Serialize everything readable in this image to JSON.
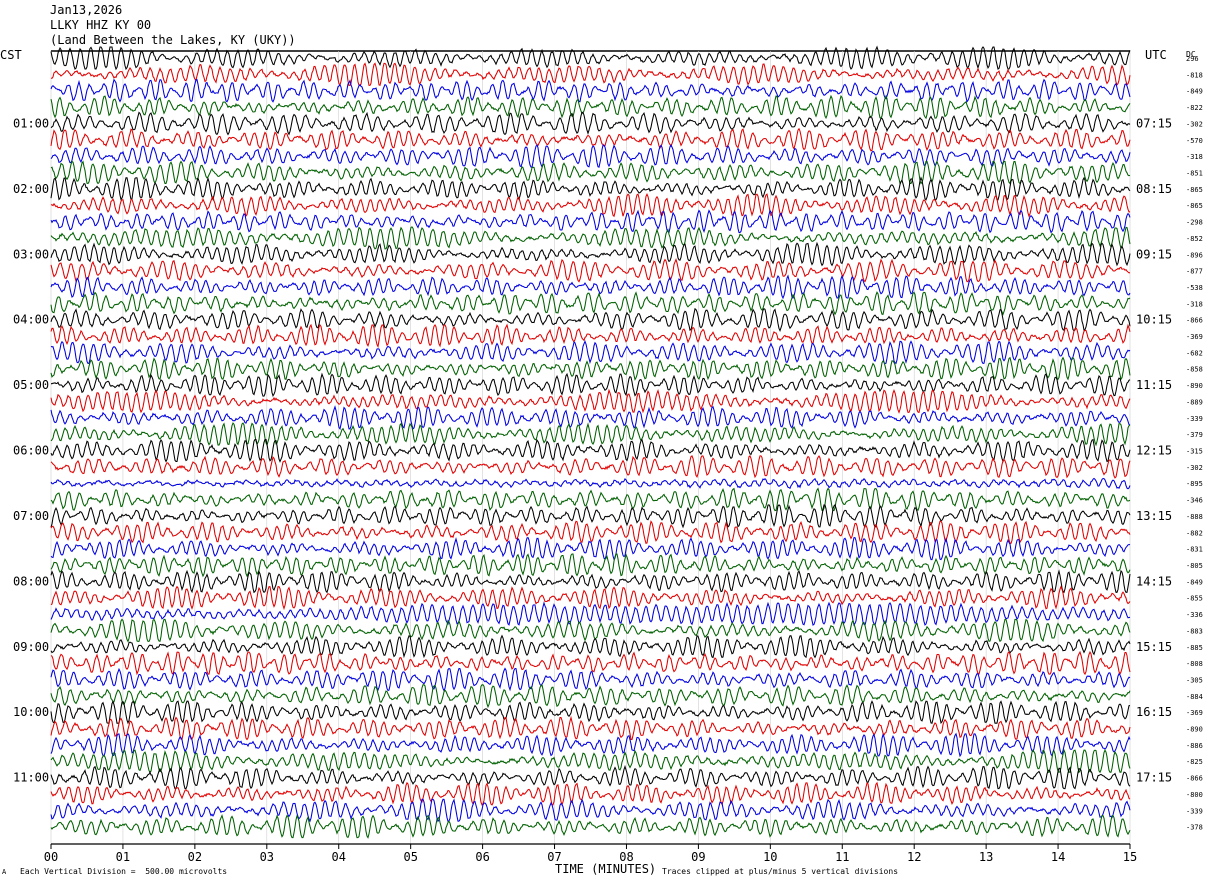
{
  "header": {
    "date": "Jan13,2026",
    "station": "LLKY HHZ KY 00",
    "location": "(Land Between the Lakes, KY (UKY))"
  },
  "left_tz": "CST",
  "right_tz": "UTC",
  "dc_label": "DC",
  "footer": {
    "scale": "Each Vertical Division =  500.00 microvolts",
    "clip": "Traces clipped at plus/minus 5 vertical divisions",
    "mark": "A"
  },
  "chart_data": {
    "type": "line",
    "title": "Jan13,2026 LLKY HHZ KY 00",
    "xlabel": "TIME (MINUTES)",
    "ylabel": "",
    "xlim": [
      0,
      15
    ],
    "x_ticks": [
      "00",
      "01",
      "02",
      "03",
      "04",
      "05",
      "06",
      "07",
      "08",
      "09",
      "10",
      "11",
      "12",
      "13",
      "14",
      "15"
    ],
    "trace_count": 48,
    "trace_minutes": 15,
    "trace_colors": [
      "#000000",
      "#e00000",
      "#0000e0",
      "#006000"
    ],
    "left_hour_labels": [
      "01:00",
      "02:00",
      "03:00",
      "04:00",
      "05:00",
      "06:00",
      "07:00",
      "08:00",
      "09:00",
      "10:00",
      "11:00"
    ],
    "right_hour_labels": [
      "07:15",
      "08:15",
      "09:15",
      "10:15",
      "11:15",
      "12:15",
      "13:15",
      "14:15",
      "15:15",
      "16:15",
      "17:15"
    ],
    "dc_offsets": [
      "296",
      "-818",
      "-849",
      "-822",
      "-302",
      "-570",
      "-318",
      "-851",
      "-865",
      "-865",
      "-298",
      "-852",
      "-896",
      "-877",
      "-538",
      "-318",
      "-866",
      "-369",
      "-682",
      "-858",
      "-890",
      "-889",
      "-339",
      "-379",
      "-315",
      "-302",
      "-895",
      "-346",
      "-888",
      "-882",
      "-831",
      "-805",
      "-849",
      "-855",
      "-336",
      "-883",
      "-885",
      "-808",
      "-305",
      "-884",
      "-369",
      "-890",
      "-886",
      "-825",
      "-866",
      "-800",
      "-339",
      "-378"
    ]
  }
}
